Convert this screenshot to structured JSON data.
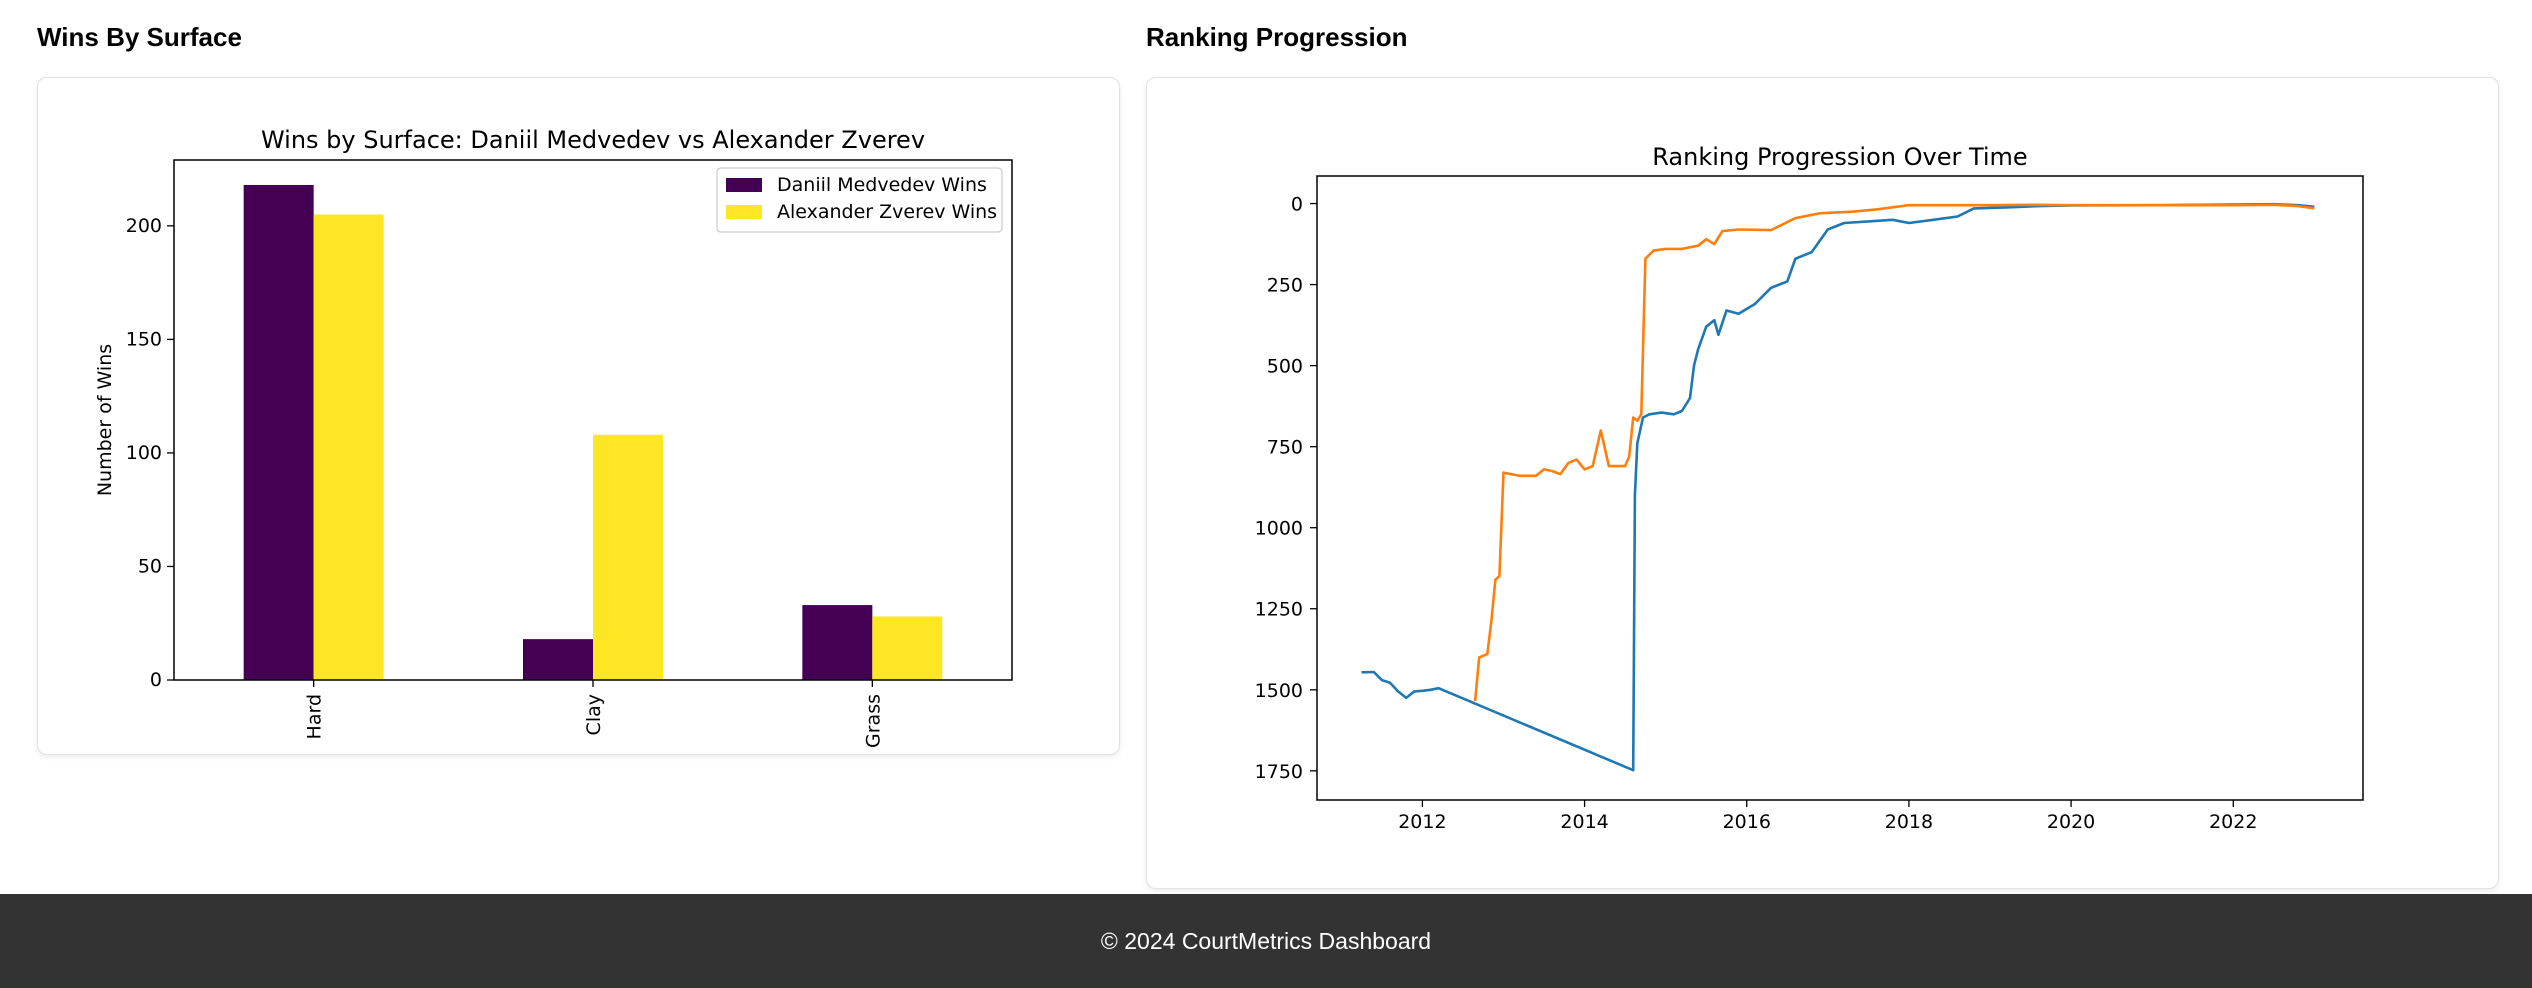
{
  "sections": {
    "left_title": "Wins By Surface",
    "right_title": "Ranking Progression"
  },
  "footer": {
    "text": "© 2024 CourtMetrics Dashboard"
  },
  "colors": {
    "medvedev_bar": "#440154",
    "zverev_bar": "#fde725",
    "line_a": "#1f77b4",
    "line_b": "#ff7f0e"
  },
  "chart_data": [
    {
      "type": "bar",
      "title": "Wins by Surface: Daniil Medvedev vs Alexander Zverev",
      "xlabel": "",
      "ylabel": "Number of Wins",
      "categories": [
        "Hard",
        "Clay",
        "Grass"
      ],
      "series": [
        {
          "name": "Daniil Medvedev Wins",
          "values": [
            218,
            18,
            33
          ]
        },
        {
          "name": "Alexander Zverev Wins",
          "values": [
            205,
            108,
            28
          ]
        }
      ],
      "ylim": [
        0,
        229
      ],
      "yticks": [
        0,
        50,
        100,
        150,
        200
      ],
      "legend": "top-right",
      "grid": false
    },
    {
      "type": "line",
      "title": "Ranking Progression Over Time",
      "xlabel": "",
      "ylabel": "",
      "xlim": [
        2010.7,
        2023.6
      ],
      "ylim": [
        1840,
        -85
      ],
      "y_inverted": true,
      "xticks": [
        2012,
        2014,
        2016,
        2018,
        2020,
        2022
      ],
      "yticks": [
        0,
        250,
        500,
        750,
        1000,
        1250,
        1500,
        1750
      ],
      "grid": false,
      "series": [
        {
          "points": [
            [
              2011.25,
              1446
            ],
            [
              2011.4,
              1445
            ],
            [
              2011.5,
              1470
            ],
            [
              2011.6,
              1478
            ],
            [
              2011.7,
              1505
            ],
            [
              2011.8,
              1525
            ],
            [
              2011.9,
              1505
            ],
            [
              2012.0,
              1503
            ],
            [
              2012.1,
              1500
            ],
            [
              2012.2,
              1495
            ],
            [
              2014.6,
              1748
            ],
            [
              2014.62,
              900
            ],
            [
              2014.65,
              740
            ],
            [
              2014.72,
              660
            ],
            [
              2014.8,
              650
            ],
            [
              2014.95,
              645
            ],
            [
              2015.1,
              650
            ],
            [
              2015.2,
              640
            ],
            [
              2015.3,
              600
            ],
            [
              2015.35,
              500
            ],
            [
              2015.4,
              450
            ],
            [
              2015.5,
              380
            ],
            [
              2015.6,
              360
            ],
            [
              2015.65,
              405
            ],
            [
              2015.75,
              330
            ],
            [
              2015.9,
              340
            ],
            [
              2016.1,
              310
            ],
            [
              2016.3,
              260
            ],
            [
              2016.5,
              240
            ],
            [
              2016.6,
              170
            ],
            [
              2016.8,
              150
            ],
            [
              2017.0,
              80
            ],
            [
              2017.2,
              60
            ],
            [
              2017.5,
              55
            ],
            [
              2017.8,
              50
            ],
            [
              2018.0,
              60
            ],
            [
              2018.3,
              50
            ],
            [
              2018.6,
              40
            ],
            [
              2018.8,
              15
            ],
            [
              2019.2,
              12
            ],
            [
              2019.6,
              8
            ],
            [
              2020.0,
              6
            ],
            [
              2021.0,
              5
            ],
            [
              2022.0,
              3
            ],
            [
              2022.5,
              2
            ],
            [
              2022.8,
              5
            ],
            [
              2023.0,
              10
            ]
          ]
        },
        {
          "points": [
            [
              2012.65,
              1535
            ],
            [
              2012.7,
              1400
            ],
            [
              2012.8,
              1390
            ],
            [
              2012.85,
              1290
            ],
            [
              2012.9,
              1160
            ],
            [
              2012.95,
              1150
            ],
            [
              2013.0,
              830
            ],
            [
              2013.2,
              840
            ],
            [
              2013.4,
              840
            ],
            [
              2013.5,
              820
            ],
            [
              2013.6,
              825
            ],
            [
              2013.7,
              835
            ],
            [
              2013.8,
              800
            ],
            [
              2013.9,
              790
            ],
            [
              2014.0,
              820
            ],
            [
              2014.1,
              810
            ],
            [
              2014.2,
              700
            ],
            [
              2014.3,
              810
            ],
            [
              2014.5,
              810
            ],
            [
              2014.55,
              780
            ],
            [
              2014.6,
              660
            ],
            [
              2014.65,
              670
            ],
            [
              2014.7,
              650
            ],
            [
              2014.75,
              170
            ],
            [
              2014.85,
              145
            ],
            [
              2015.0,
              140
            ],
            [
              2015.2,
              140
            ],
            [
              2015.4,
              130
            ],
            [
              2015.5,
              110
            ],
            [
              2015.6,
              125
            ],
            [
              2015.7,
              85
            ],
            [
              2015.9,
              80
            ],
            [
              2016.3,
              82
            ],
            [
              2016.6,
              45
            ],
            [
              2016.9,
              30
            ],
            [
              2017.3,
              25
            ],
            [
              2017.6,
              18
            ],
            [
              2018.0,
              5
            ],
            [
              2018.5,
              5
            ],
            [
              2019.0,
              5
            ],
            [
              2019.5,
              4
            ],
            [
              2020.0,
              5
            ],
            [
              2021.0,
              5
            ],
            [
              2022.0,
              5
            ],
            [
              2022.5,
              4
            ],
            [
              2022.8,
              8
            ],
            [
              2023.0,
              15
            ]
          ]
        }
      ]
    }
  ]
}
